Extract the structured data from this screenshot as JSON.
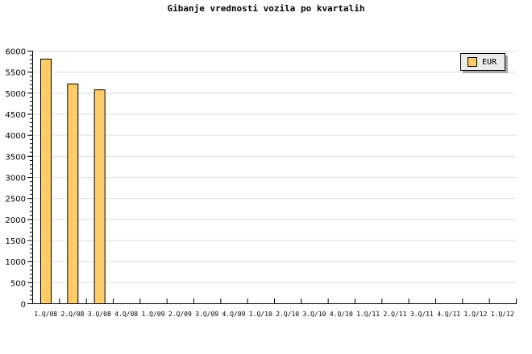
{
  "chart_data": {
    "type": "bar",
    "title": "Gibanje vrednosti vozila po kvartalih",
    "categories": [
      "1.Q/08",
      "2.Q/08",
      "3.Q/08",
      "4.Q/08",
      "1.Q/09",
      "2.Q/09",
      "3.Q/09",
      "4.Q/09",
      "1.Q/10",
      "2.Q/10",
      "3.Q/10",
      "4.Q/10",
      "1.Q/11",
      "2.Q/11",
      "3.Q/11",
      "4.Q/11",
      "1.Q/12",
      "1.Q/12"
    ],
    "series": [
      {
        "name": "EUR",
        "values": [
          5810,
          5220,
          5080,
          null,
          null,
          null,
          null,
          null,
          null,
          null,
          null,
          null,
          null,
          null,
          null,
          null,
          null,
          null
        ]
      }
    ],
    "yticks": [
      "0",
      "500",
      "1000",
      "1500",
      "2000",
      "2500",
      "3000",
      "3500",
      "4000",
      "4500",
      "5000",
      "5500",
      "6000"
    ],
    "ylim": [
      0,
      6000
    ],
    "grid": true,
    "legend": "top-right",
    "colors": {
      "bar": "#ffcc66",
      "grid": "#dddddd",
      "legend_bg": "#ececec"
    }
  }
}
